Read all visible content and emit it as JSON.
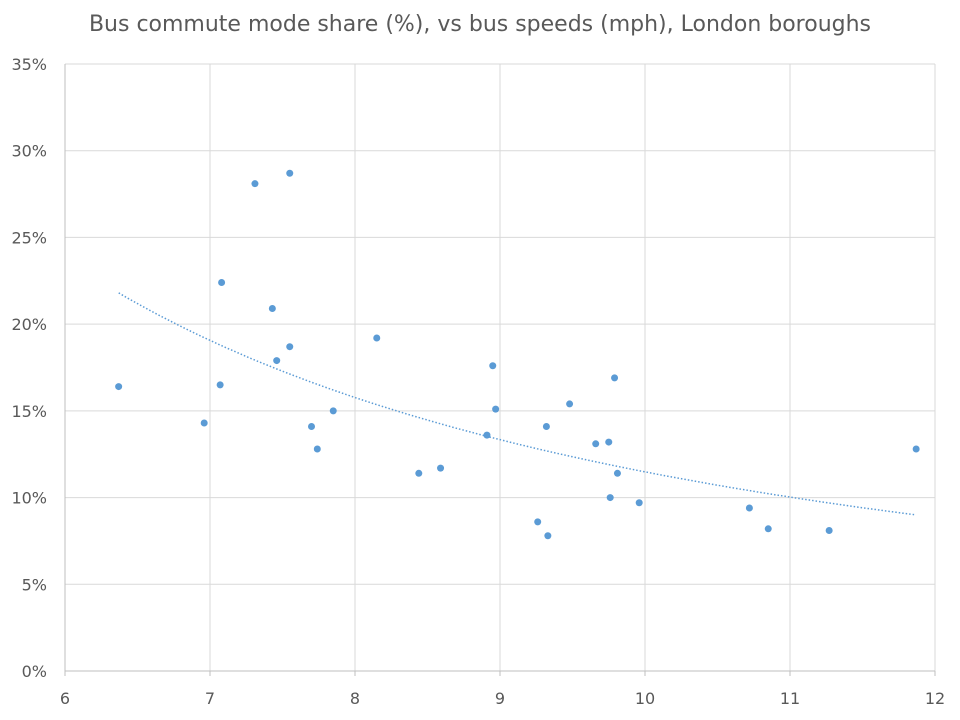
{
  "chart_data": {
    "type": "scatter",
    "title": "Bus commute mode share (%), vs bus speeds (mph), London boroughs",
    "xlabel": "",
    "ylabel": "",
    "xlim": [
      6,
      12
    ],
    "ylim": [
      0,
      35
    ],
    "x_ticks": [
      "6",
      "7",
      "8",
      "9",
      "10",
      "11",
      "12"
    ],
    "y_ticks": [
      "0%",
      "5%",
      "10%",
      "15%",
      "20%",
      "25%",
      "30%",
      "35%"
    ],
    "grid": true,
    "legend": "none",
    "point_color": "#5b9bd5",
    "trendline": {
      "type": "power",
      "style": "dotted",
      "color": "#5b9bd5",
      "x_range": [
        6.37,
        11.87
      ],
      "y_range": [
        21.8,
        9.0
      ]
    },
    "points": [
      {
        "x": 6.37,
        "y": 16.4
      },
      {
        "x": 6.96,
        "y": 14.3
      },
      {
        "x": 7.07,
        "y": 16.5
      },
      {
        "x": 7.08,
        "y": 22.4
      },
      {
        "x": 7.31,
        "y": 28.1
      },
      {
        "x": 7.43,
        "y": 20.9
      },
      {
        "x": 7.46,
        "y": 17.9
      },
      {
        "x": 7.55,
        "y": 28.7
      },
      {
        "x": 7.55,
        "y": 18.7
      },
      {
        "x": 7.7,
        "y": 14.1
      },
      {
        "x": 7.74,
        "y": 12.8
      },
      {
        "x": 7.85,
        "y": 15.0
      },
      {
        "x": 8.15,
        "y": 19.2
      },
      {
        "x": 8.44,
        "y": 11.4
      },
      {
        "x": 8.59,
        "y": 11.7
      },
      {
        "x": 8.91,
        "y": 13.6
      },
      {
        "x": 8.95,
        "y": 17.6
      },
      {
        "x": 8.97,
        "y": 15.1
      },
      {
        "x": 9.26,
        "y": 8.6
      },
      {
        "x": 9.32,
        "y": 14.1
      },
      {
        "x": 9.33,
        "y": 7.8
      },
      {
        "x": 9.48,
        "y": 15.4
      },
      {
        "x": 9.66,
        "y": 13.1
      },
      {
        "x": 9.75,
        "y": 13.2
      },
      {
        "x": 9.76,
        "y": 10.0
      },
      {
        "x": 9.79,
        "y": 16.9
      },
      {
        "x": 9.81,
        "y": 11.4
      },
      {
        "x": 9.96,
        "y": 9.7
      },
      {
        "x": 10.72,
        "y": 9.4
      },
      {
        "x": 10.85,
        "y": 8.2
      },
      {
        "x": 11.27,
        "y": 8.1
      },
      {
        "x": 11.87,
        "y": 12.8
      }
    ]
  }
}
